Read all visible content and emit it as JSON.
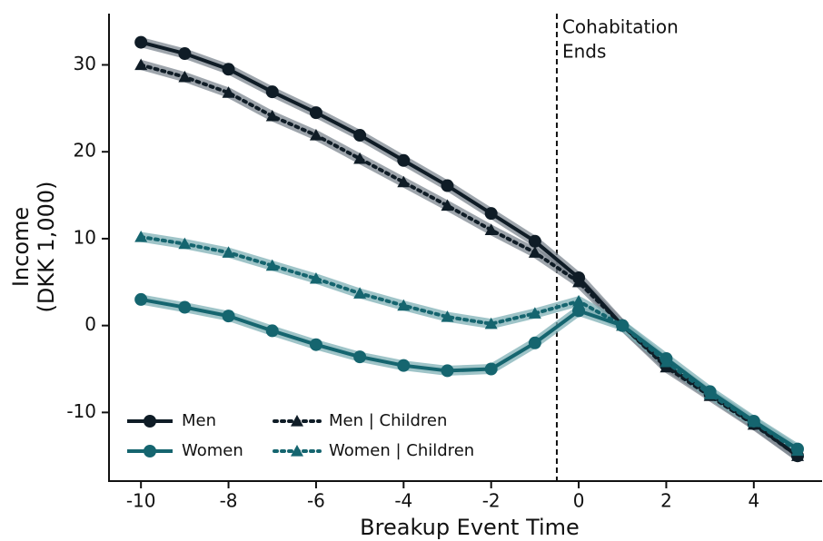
{
  "chart_data": {
    "type": "line",
    "xlabel": "Breakup Event Time",
    "ylabel": [
      "Income",
      "(DKK 1,000)"
    ],
    "x": [
      -10,
      -9,
      -8,
      -7,
      -6,
      -5,
      -4,
      -3,
      -2,
      -1,
      0,
      1,
      2,
      3,
      4,
      5
    ],
    "series": [
      {
        "name": "Men",
        "color": "#0f1c26",
        "band_color": "#7d8790",
        "marker": "circle",
        "dash": false,
        "values": [
          32.6,
          31.3,
          29.5,
          26.9,
          24.5,
          21.9,
          19.0,
          16.1,
          12.9,
          9.7,
          5.5,
          0,
          -4.6,
          -7.9,
          -11.3,
          -15.0
        ]
      },
      {
        "name": "Men | Children",
        "color": "#0f1c26",
        "band_color": "#7d8790",
        "marker": "triangle",
        "dash": true,
        "values": [
          30.0,
          28.6,
          26.8,
          24.1,
          21.9,
          19.2,
          16.5,
          13.8,
          11.0,
          8.4,
          5.0,
          0,
          -4.8,
          -8.1,
          -11.4,
          -15.0
        ]
      },
      {
        "name": "Women",
        "color": "#15656f",
        "band_color": "#7fb0b5",
        "marker": "circle",
        "dash": false,
        "values": [
          3.0,
          2.1,
          1.1,
          -0.6,
          -2.2,
          -3.6,
          -4.6,
          -5.2,
          -5.0,
          -2.0,
          1.7,
          0,
          -3.8,
          -7.6,
          -11.0,
          -14.2
        ]
      },
      {
        "name": "Women | Children",
        "color": "#15656f",
        "band_color": "#7fb0b5",
        "marker": "triangle",
        "dash": true,
        "values": [
          10.2,
          9.4,
          8.4,
          6.9,
          5.4,
          3.7,
          2.3,
          1.0,
          0.2,
          1.4,
          2.8,
          0,
          -4.2,
          -7.9,
          -11.1,
          -14.4
        ]
      }
    ],
    "annotation": {
      "x": -0.5,
      "lines": [
        "Cohabitation",
        "Ends"
      ]
    },
    "xlim": [
      -10.73,
      5.56
    ],
    "ylim": [
      -17.9,
      35.9
    ],
    "xticks": [
      -10,
      -8,
      -6,
      -4,
      -2,
      0,
      2,
      4
    ],
    "yticks": [
      -10,
      0,
      10,
      20,
      30
    ],
    "legend": "lower left"
  }
}
